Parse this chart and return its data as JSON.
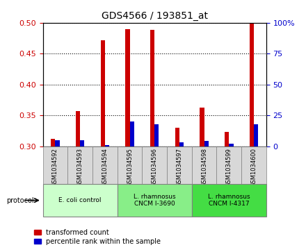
{
  "title": "GDS4566 / 193851_at",
  "samples": [
    "GSM1034592",
    "GSM1034593",
    "GSM1034594",
    "GSM1034595",
    "GSM1034596",
    "GSM1034597",
    "GSM1034598",
    "GSM1034599",
    "GSM1034600"
  ],
  "red_values": [
    0.312,
    0.357,
    0.472,
    0.49,
    0.488,
    0.33,
    0.363,
    0.323,
    0.5
  ],
  "blue_percentile": [
    5,
    5,
    1,
    20,
    18,
    3,
    4,
    2,
    18
  ],
  "ylim": [
    0.3,
    0.5
  ],
  "y2lim": [
    0,
    100
  ],
  "y_ticks": [
    0.3,
    0.35,
    0.4,
    0.45,
    0.5
  ],
  "y2_ticks": [
    0,
    25,
    50,
    75,
    100
  ],
  "protocols": [
    {
      "label": "E. coli control",
      "start": 0,
      "end": 3,
      "color": "#ccffcc"
    },
    {
      "label": "L. rhamnosus\nCNCM I-3690",
      "start": 3,
      "end": 6,
      "color": "#88ee88"
    },
    {
      "label": "L. rhamnosus\nCNCM I-4317",
      "start": 6,
      "end": 9,
      "color": "#44dd44"
    }
  ],
  "bar_width": 0.35,
  "red_color": "#cc0000",
  "blue_color": "#0000cc",
  "bg_color": "#d8d8d8",
  "left_axis_color": "#cc0000",
  "right_axis_color": "#0000cc"
}
